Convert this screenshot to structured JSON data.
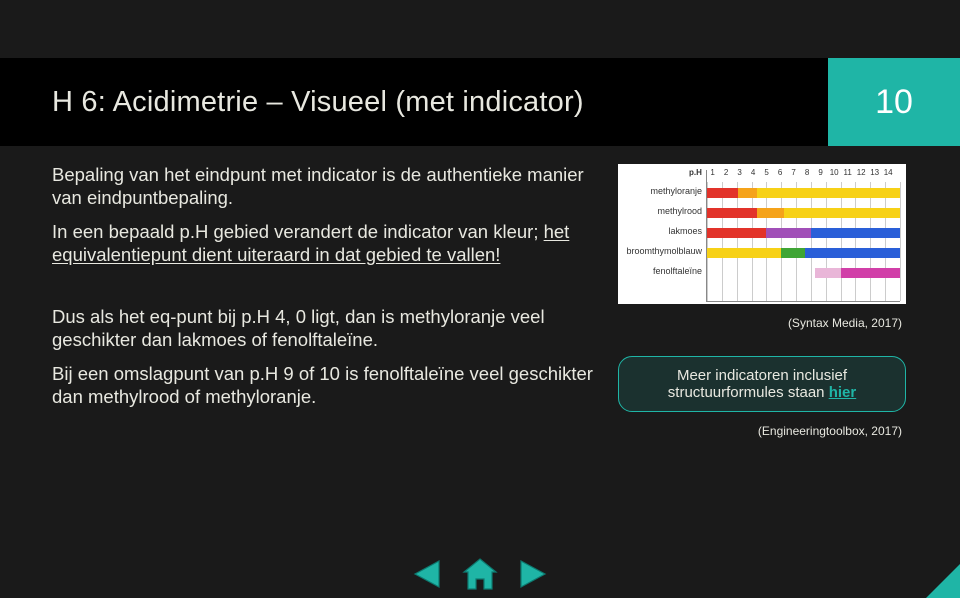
{
  "header": {
    "title": "H 6: Acidimetrie – Visueel (met indicator)",
    "slide_number": "10"
  },
  "body": {
    "p1": "Bepaling van het eindpunt met indicator is de authentieke manier van eindpuntbepaling.",
    "p2a": "In een bepaald p.H gebied verandert de indicator van kleur; ",
    "p2b_u": "het equivalentiepunt dient uiteraard in dat gebied te vallen!",
    "p3": "Dus als het eq-punt bij p.H 4, 0 ligt, dan is methyloranje veel geschikter dan lakmoes of fenolftaleïne.",
    "p4": "Bij een omslagpunt van p.H 9 of 10 is fenolftaleïne veel geschikter dan methylrood of methyloranje."
  },
  "chart": {
    "xlabel": "p.H",
    "ticks": [
      "1",
      "2",
      "3",
      "4",
      "5",
      "6",
      "7",
      "8",
      "9",
      "10",
      "11",
      "12",
      "13",
      "14"
    ],
    "indicators": [
      {
        "name": "methyloranje",
        "segments": [
          {
            "from": 1,
            "to": 3.1,
            "color": "#e2332a"
          },
          {
            "from": 3.1,
            "to": 4.4,
            "color": "#f5a31a"
          },
          {
            "from": 4.4,
            "to": 14,
            "color": "#f7d117"
          }
        ]
      },
      {
        "name": "methylrood",
        "segments": [
          {
            "from": 1,
            "to": 4.4,
            "color": "#e2332a"
          },
          {
            "from": 4.4,
            "to": 6.2,
            "color": "#f5a31a"
          },
          {
            "from": 6.2,
            "to": 14,
            "color": "#f7d117"
          }
        ]
      },
      {
        "name": "lakmoes",
        "segments": [
          {
            "from": 1,
            "to": 5.0,
            "color": "#e2332a"
          },
          {
            "from": 5.0,
            "to": 8.0,
            "color": "#a14fb8"
          },
          {
            "from": 8.0,
            "to": 14,
            "color": "#2a5fd8"
          }
        ]
      },
      {
        "name": "broomthymolblauw",
        "segments": [
          {
            "from": 1,
            "to": 6.0,
            "color": "#f7d117"
          },
          {
            "from": 6.0,
            "to": 7.6,
            "color": "#3fa535"
          },
          {
            "from": 7.6,
            "to": 14,
            "color": "#2a5fd8"
          }
        ]
      },
      {
        "name": "fenolftaleïne",
        "segments": [
          {
            "from": 8.3,
            "to": 10.0,
            "color": "#e9b6d8"
          },
          {
            "from": 10.0,
            "to": 14,
            "color": "#d13fa8"
          }
        ]
      }
    ],
    "ph_min": 1,
    "ph_max": 14,
    "row_top_start": 18,
    "row_gap": 20,
    "cite": "(Syntax Media, 2017)"
  },
  "infobox": {
    "text_a": "Meer indicatoren inclusief structuurformules staan ",
    "link": "hier"
  },
  "cite2": "(Engineeringtoolbox, 2017)",
  "colors": {
    "accent": "#1fb5a6"
  }
}
